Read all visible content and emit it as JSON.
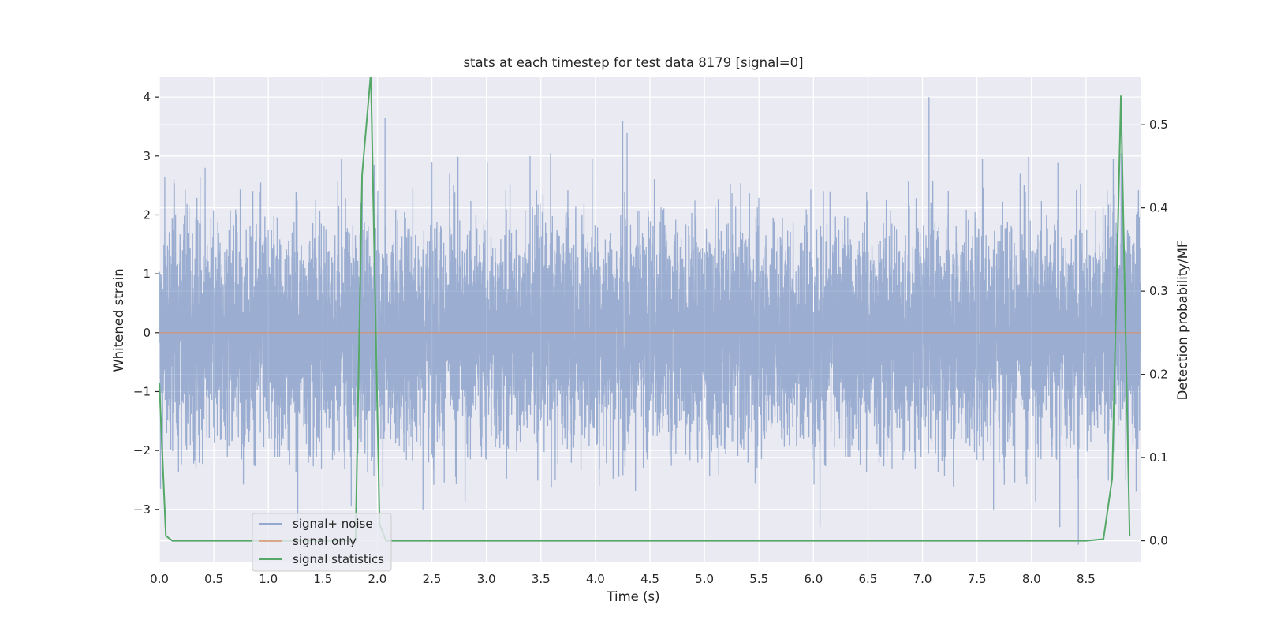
{
  "chart_data": {
    "type": "line",
    "title": "stats at each timestep for test data 8179 [signal=0]",
    "xlabel": "Time (s)",
    "ylabel": "Whitened strain",
    "y2label": "Detection probability/MF",
    "xlim": [
      0.0,
      9.0
    ],
    "ylim": [
      -3.9,
      4.35
    ],
    "y2lim": [
      -0.026,
      0.558
    ],
    "xticks": [
      "0.0",
      "0.5",
      "1.0",
      "1.5",
      "2.0",
      "2.5",
      "3.0",
      "3.5",
      "4.0",
      "4.5",
      "5.0",
      "5.5",
      "6.0",
      "6.5",
      "7.0",
      "7.5",
      "8.0",
      "8.5"
    ],
    "yticks": [
      "−3",
      "−2",
      "−1",
      "0",
      "1",
      "2",
      "3",
      "4"
    ],
    "y2ticks": [
      "0.0",
      "0.1",
      "0.2",
      "0.3",
      "0.4",
      "0.5"
    ],
    "grid": true,
    "legend_position": "lower-left",
    "colors": {
      "background": "#eaeaf2",
      "grid": "#ffffff",
      "signal_noise": "#4c72b0",
      "signal_only": "#dd8452",
      "signal_statistics": "#55a868"
    },
    "series": [
      {
        "name": "signal+ noise",
        "axis": "left",
        "description_stats": {
          "n_samples": 9000,
          "mean": 0.0,
          "std": 1.0
        },
        "peaks": [
          {
            "x": 0.05,
            "y": 2.65
          },
          {
            "x": 0.42,
            "y": 2.8
          },
          {
            "x": 0.93,
            "y": 2.55
          },
          {
            "x": 1.67,
            "y": 2.95
          },
          {
            "x": 1.97,
            "y": 2.85
          },
          {
            "x": 2.07,
            "y": 3.65
          },
          {
            "x": 2.5,
            "y": 2.9
          },
          {
            "x": 3.4,
            "y": 3.0
          },
          {
            "x": 3.97,
            "y": 2.95
          },
          {
            "x": 4.25,
            "y": 3.6
          },
          {
            "x": 4.29,
            "y": 3.4
          },
          {
            "x": 7.06,
            "y": 4.0
          },
          {
            "x": 7.55,
            "y": 2.95
          },
          {
            "x": 8.75,
            "y": 2.95
          },
          {
            "x": 8.83,
            "y": 2.95
          },
          {
            "x": 1.27,
            "y": -3.2
          },
          {
            "x": 6.06,
            "y": -3.3
          },
          {
            "x": 8.43,
            "y": -3.6
          },
          {
            "x": 8.26,
            "y": -3.3
          },
          {
            "x": 1.76,
            "y": -2.95
          },
          {
            "x": 8.96,
            "y": -2.7
          }
        ]
      },
      {
        "name": "signal only",
        "axis": "left",
        "x": [
          0.0,
          9.0
        ],
        "y": [
          0.0,
          0.0
        ]
      },
      {
        "name": "signal statistics",
        "axis": "right",
        "x": [
          0.0,
          0.06,
          0.12,
          0.5,
          1.0,
          1.5,
          1.8,
          1.86,
          1.94,
          2.02,
          2.08,
          2.5,
          3.0,
          4.0,
          5.0,
          6.0,
          7.0,
          8.0,
          8.5,
          8.66,
          8.74,
          8.82,
          8.9
        ],
        "y": [
          0.19,
          0.006,
          0.0,
          0.0,
          0.0,
          0.0,
          0.0,
          0.44,
          0.562,
          0.02,
          0.0,
          0.0,
          0.0,
          0.0,
          0.0,
          0.0,
          0.0,
          0.0,
          0.0,
          0.002,
          0.075,
          0.535,
          0.006
        ]
      }
    ]
  },
  "legend": {
    "items": [
      {
        "label": "signal+ noise"
      },
      {
        "label": "signal only"
      },
      {
        "label": "signal statistics"
      }
    ]
  }
}
